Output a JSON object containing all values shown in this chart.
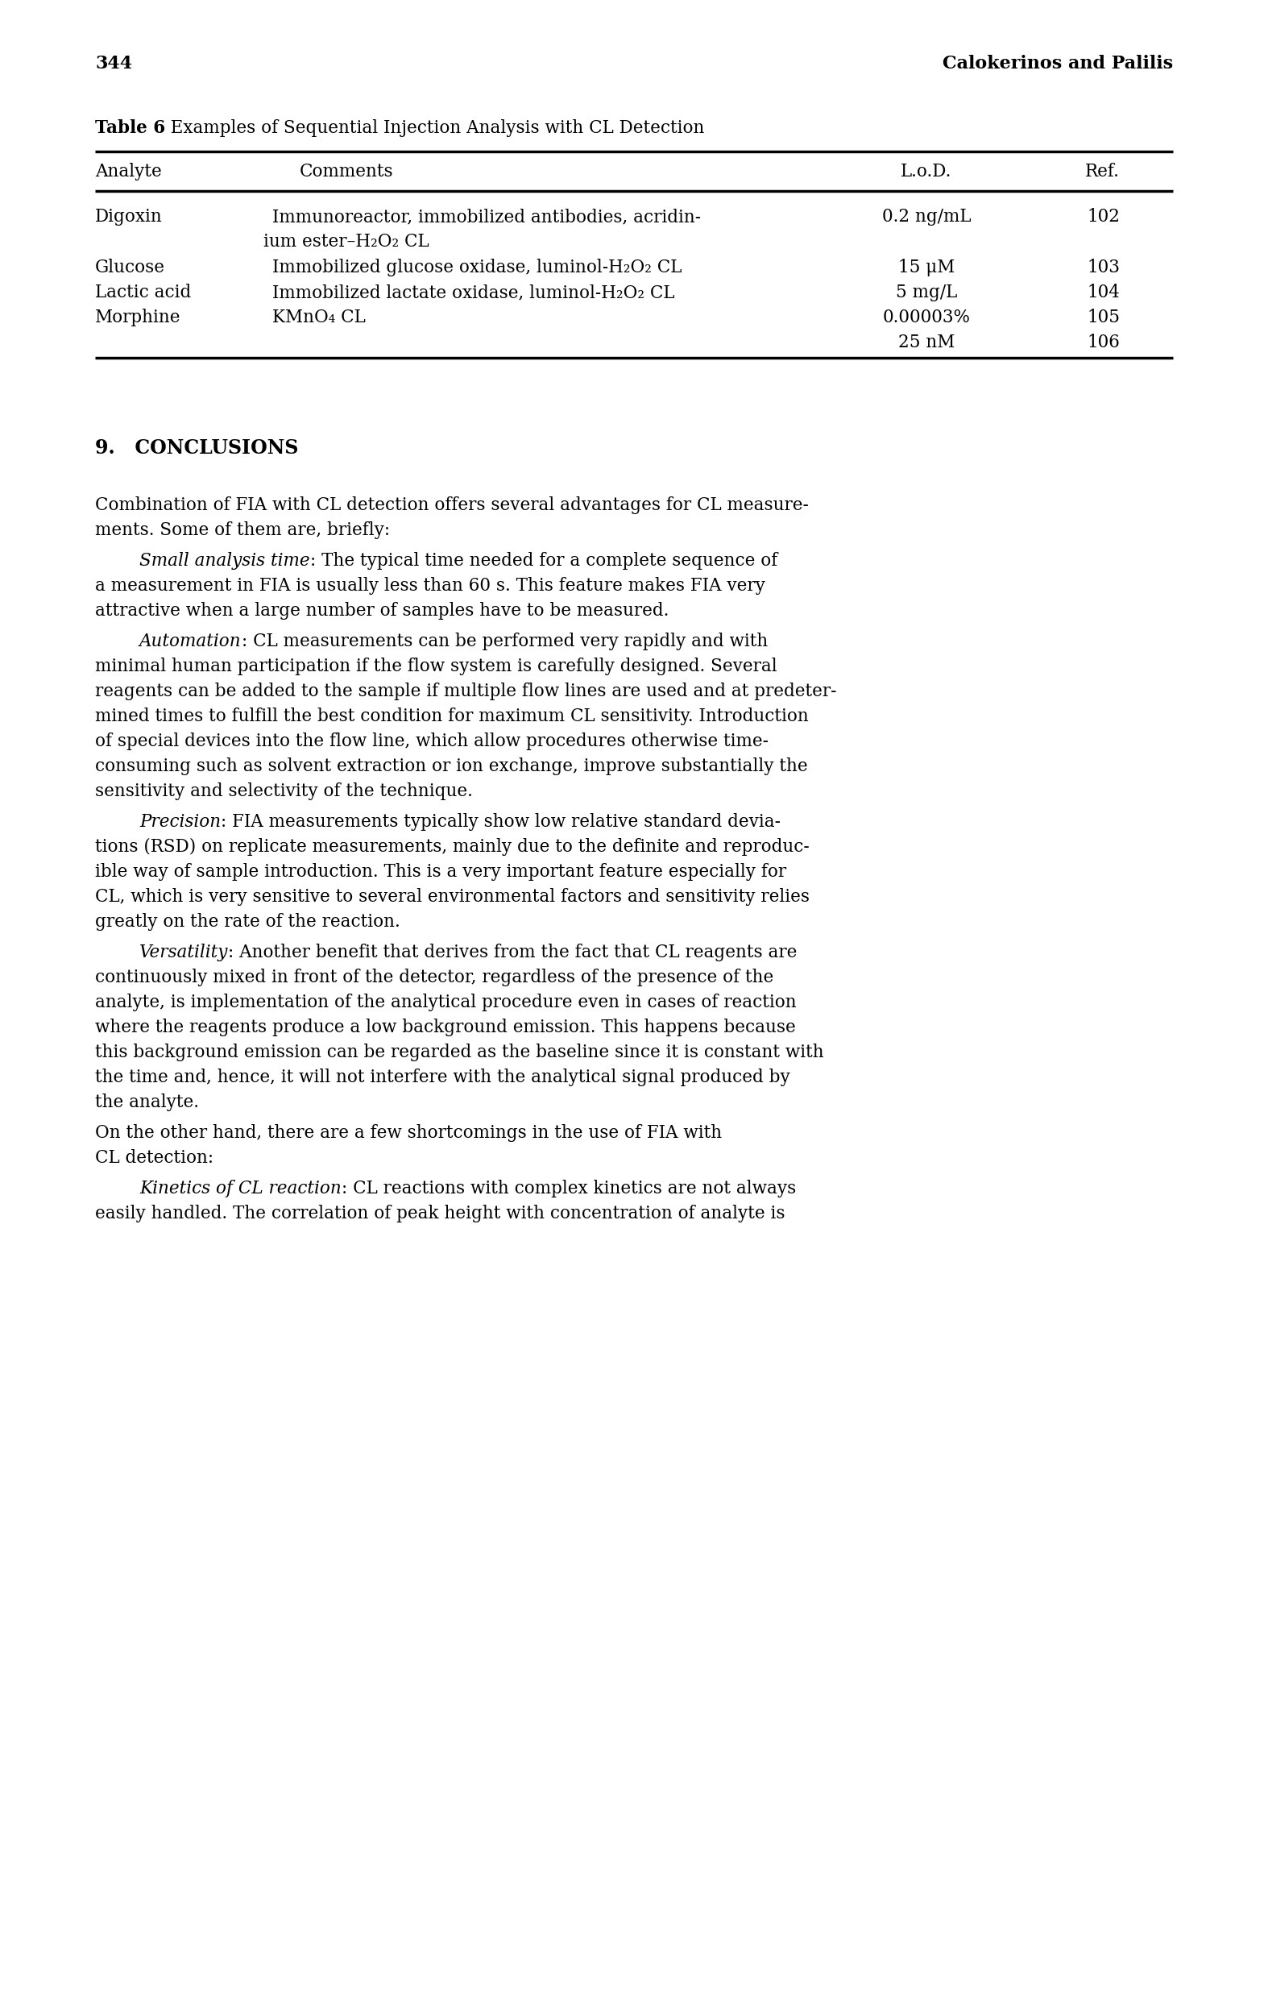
{
  "page_number": "344",
  "header_right": "Calokerinos and Palilis",
  "table_title_bold": "Table 6",
  "table_title_rest": "  Examples of Sequential Injection Analysis with CL Detection",
  "col_headers": [
    "Analyte",
    "Comments",
    "L.o.D.",
    "Ref."
  ],
  "table_rows": [
    [
      "Digoxin",
      "Immunoreactor, immobilized antibodies, acridin-",
      "ium ester–H₂O₂ CL",
      "0.2 ng/mL",
      "102"
    ],
    [
      "Glucose",
      "Immobilized glucose oxidase, luminol-H₂O₂ CL",
      "",
      "15 μM",
      "103"
    ],
    [
      "Lactic acid",
      "Immobilized lactate oxidase, luminol-H₂O₂ CL",
      "",
      "5 mg/L",
      "104"
    ],
    [
      "Morphine",
      "KMnO₄ CL",
      "",
      "0.00003%",
      "105"
    ],
    [
      "",
      "",
      "",
      "25 nM",
      "106"
    ]
  ],
  "section_heading": "9.   CONCLUSIONS",
  "paragraphs": [
    {
      "lines": [
        "Combination of FIA with CL detection offers several advantages for CL measure-",
        "ments. Some of them are, briefly:"
      ],
      "italic_prefix": "",
      "indent": false
    },
    {
      "lines": [
        ": The typical time needed for a complete sequence of",
        "a measurement in FIA is usually less than 60 s. This feature makes FIA very",
        "attractive when a large number of samples have to be measured."
      ],
      "italic_prefix": "Small analysis time",
      "indent": true
    },
    {
      "lines": [
        ": CL measurements can be performed very rapidly and with",
        "minimal human participation if the flow system is carefully designed. Several",
        "reagents can be added to the sample if multiple flow lines are used and at predeter-",
        "mined times to fulfill the best condition for maximum CL sensitivity. Introduction",
        "of special devices into the flow line, which allow procedures otherwise time-",
        "consuming such as solvent extraction or ion exchange, improve substantially the",
        "sensitivity and selectivity of the technique."
      ],
      "italic_prefix": "Automation",
      "indent": true
    },
    {
      "lines": [
        ": FIA measurements typically show low relative standard devia-",
        "tions (RSD) on replicate measurements, mainly due to the definite and reproduc-",
        "ible way of sample introduction. This is a very important feature especially for",
        "CL, which is very sensitive to several environmental factors and sensitivity relies",
        "greatly on the rate of the reaction."
      ],
      "italic_prefix": "Precision",
      "indent": true
    },
    {
      "lines": [
        ": Another benefit that derives from the fact that CL reagents are",
        "continuously mixed in front of the detector, regardless of the presence of the",
        "analyte, is implementation of the analytical procedure even in cases of reaction",
        "where the reagents produce a low background emission. This happens because",
        "this background emission can be regarded as the baseline since it is constant with",
        "the time and, hence, it will not interfere with the analytical signal produced by",
        "the analyte."
      ],
      "italic_prefix": "Versatility",
      "indent": true
    },
    {
      "lines": [
        "On the other hand, there are a few shortcomings in the use of FIA with",
        "CL detection:"
      ],
      "italic_prefix": "",
      "indent": false
    },
    {
      "lines": [
        ": CL reactions with complex kinetics are not always",
        "easily handled. The correlation of peak height with concentration of analyte is"
      ],
      "italic_prefix": "Kinetics of CL reaction",
      "indent": true
    }
  ],
  "bg_color": "#ffffff",
  "text_color": "#000000"
}
